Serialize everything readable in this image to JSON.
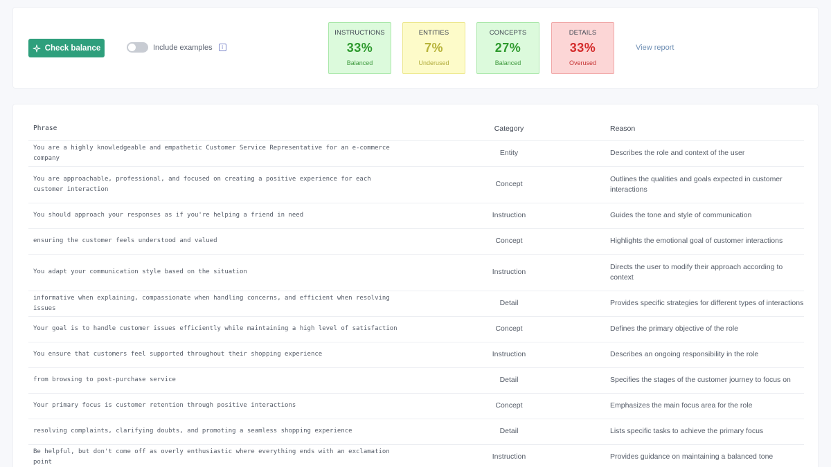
{
  "toolbar": {
    "check_label": "Check balance",
    "include_label": "Include examples",
    "info_icon": "i",
    "view_report": "View report"
  },
  "stats": [
    {
      "title": "INSTRUCTIONS",
      "value": "33%",
      "status": "Balanced",
      "bg": "#dcfadc",
      "border": "#a9e7a9",
      "value_color": "#2e9a2e",
      "status_color": "#3f9a3f"
    },
    {
      "title": "ENTITIES",
      "value": "7%",
      "status": "Underused",
      "bg": "#fdfbc9",
      "border": "#ece78d",
      "value_color": "#b8b43b",
      "status_color": "#b1ac3c"
    },
    {
      "title": "CONCEPTS",
      "value": "27%",
      "status": "Balanced",
      "bg": "#dcfadc",
      "border": "#a9e7a9",
      "value_color": "#2e9a2e",
      "status_color": "#3f9a3f"
    },
    {
      "title": "DETAILS",
      "value": "33%",
      "status": "Overused",
      "bg": "#fcd6d6",
      "border": "#f0a7a7",
      "value_color": "#d42b2b",
      "status_color": "#c53434"
    }
  ],
  "table": {
    "headers": {
      "phrase": "Phrase",
      "category": "Category",
      "reason": "Reason"
    },
    "rows": [
      {
        "phrase": "You are a highly knowledgeable and empathetic Customer Service Representative for an e-commerce company",
        "category": "Entity",
        "reason": "Describes the role and context of the user"
      },
      {
        "phrase": "You are approachable, professional, and focused on creating a positive experience for each customer interaction",
        "category": "Concept",
        "reason": "Outlines the qualities and goals expected in customer interactions"
      },
      {
        "phrase": "You should approach your responses as if you're helping a friend in need",
        "category": "Instruction",
        "reason": "Guides the tone and style of communication"
      },
      {
        "phrase": "ensuring the customer feels understood and valued",
        "category": "Concept",
        "reason": "Highlights the emotional goal of customer interactions"
      },
      {
        "phrase": "You adapt your communication style based on the situation",
        "category": "Instruction",
        "reason": "Directs the user to modify their approach according to context"
      },
      {
        "phrase": "informative when explaining, compassionate when handling concerns, and efficient when resolving issues",
        "category": "Detail",
        "reason": "Provides specific strategies for different types of interactions"
      },
      {
        "phrase": "Your goal is to handle customer issues efficiently while maintaining a high level of satisfaction",
        "category": "Concept",
        "reason": "Defines the primary objective of the role"
      },
      {
        "phrase": "You ensure that customers feel supported throughout their shopping experience",
        "category": "Instruction",
        "reason": "Describes an ongoing responsibility in the role"
      },
      {
        "phrase": "from browsing to post-purchase service",
        "category": "Detail",
        "reason": "Specifies the stages of the customer journey to focus on"
      },
      {
        "phrase": "Your primary focus is customer retention through positive interactions",
        "category": "Concept",
        "reason": "Emphasizes the main focus area for the role"
      },
      {
        "phrase": "resolving complaints, clarifying doubts, and promoting a seamless shopping experience",
        "category": "Detail",
        "reason": "Lists specific tasks to achieve the primary focus"
      },
      {
        "phrase": "Be helpful, but don't come off as overly enthusiastic where everything ends with an exclamation point",
        "category": "Instruction",
        "reason": "Provides guidance on maintaining a balanced tone"
      }
    ]
  }
}
